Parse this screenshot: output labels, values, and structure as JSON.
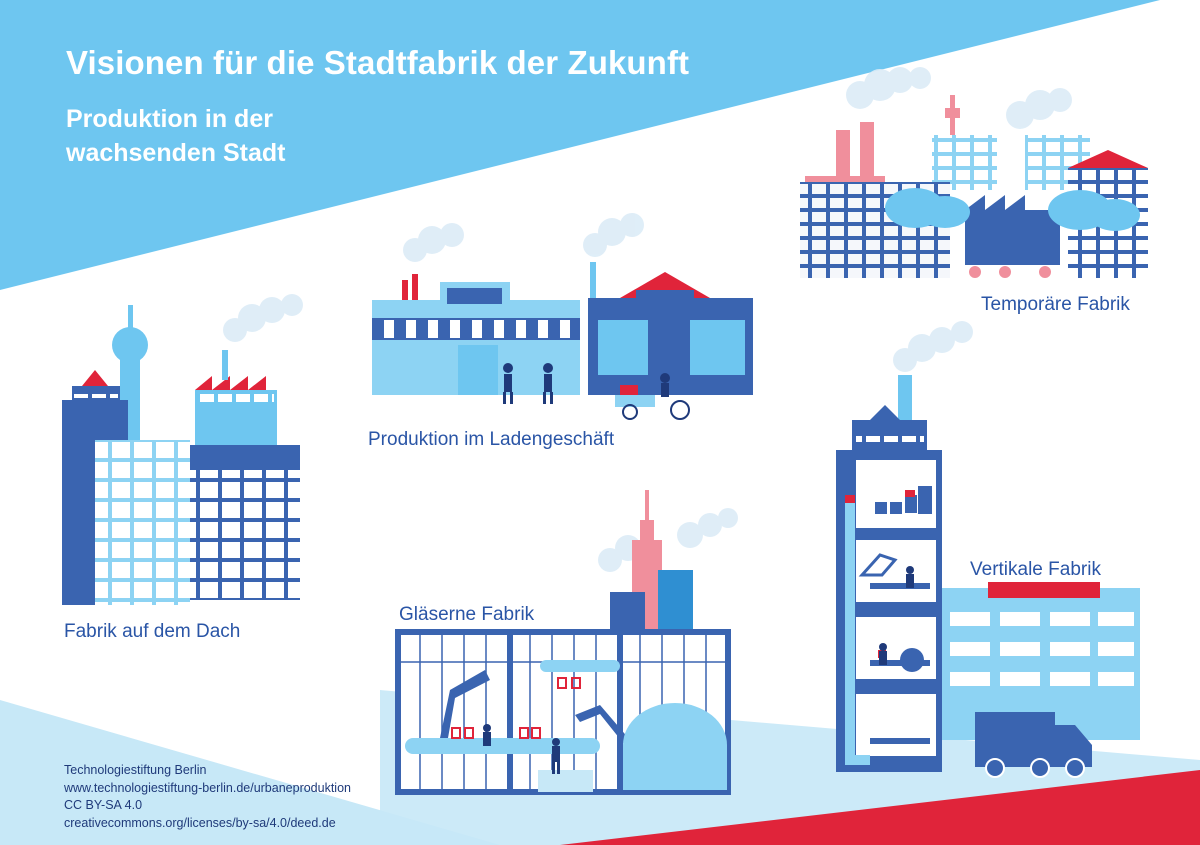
{
  "header": {
    "title": "Visionen für die Stadtfabrik der Zukunft",
    "subtitle_line1": "Produktion in der",
    "subtitle_line2": "wachsenden Stadt"
  },
  "labels": {
    "temporary_factory": "Temporäre Fabrik",
    "shop_production": "Produktion im Ladengeschäft",
    "roof_factory": "Fabrik auf dem Dach",
    "glass_factory": "Gläserne Fabrik",
    "vertical_factory": "Vertikale Fabrik"
  },
  "credits": {
    "line1": "Technologiestiftung Berlin",
    "line2": "www.technologiestiftung-berlin.de/urbaneproduktion",
    "line3": "CC BY-SA 4.0",
    "line4": "creativecommons.org/licenses/by-sa/4.0/deed.de"
  },
  "colors": {
    "dark_blue": "#3a64b0",
    "light_blue": "#6ec6f0",
    "pale_blue": "#c7e8f7",
    "red": "#e0243a",
    "pink": "#f08f9c"
  }
}
